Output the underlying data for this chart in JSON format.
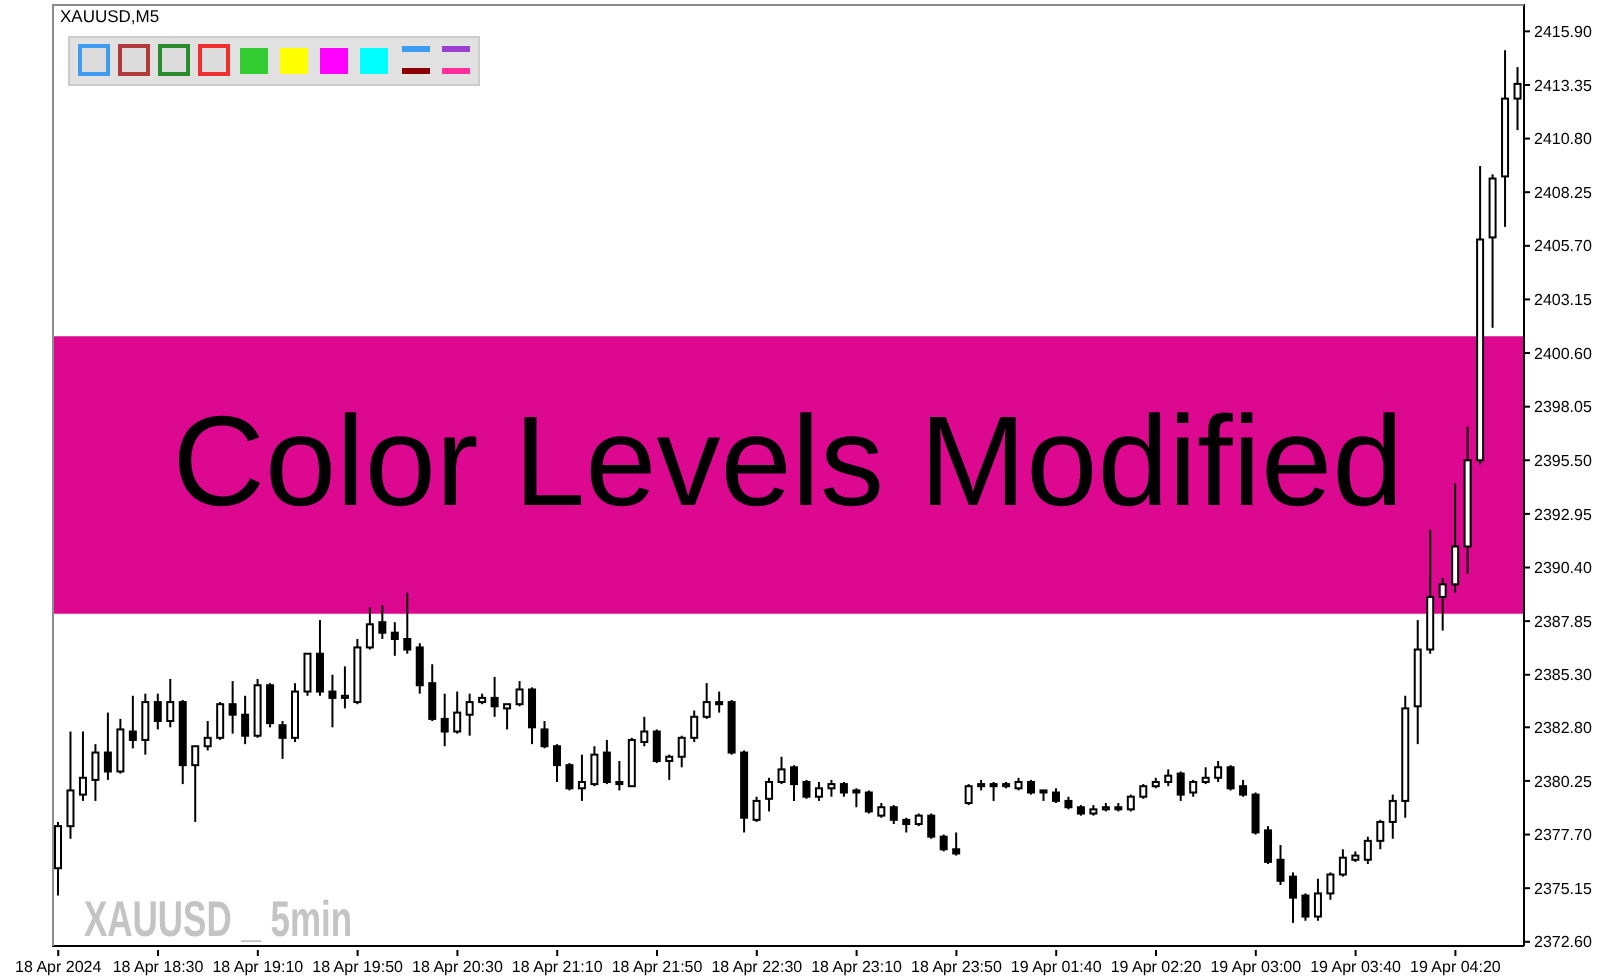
{
  "chart_data": {
    "type": "candlestick",
    "title": "XAUUSD,M5",
    "annotations": [
      "XAUUSD _ 5min"
    ],
    "categories": [
      "18 Apr 2024",
      null,
      null,
      null,
      null,
      null,
      null,
      null,
      "18 Apr 18:30",
      null,
      null,
      null,
      null,
      null,
      null,
      null,
      "18 Apr 19:10",
      null,
      null,
      null,
      null,
      null,
      null,
      null,
      "18 Apr 19:50",
      null,
      null,
      null,
      null,
      null,
      null,
      null,
      "18 Apr 20:30",
      null,
      null,
      null,
      null,
      null,
      null,
      null,
      "18 Apr 21:10",
      null,
      null,
      null,
      null,
      null,
      null,
      null,
      "18 Apr 21:50",
      null,
      null,
      null,
      null,
      null,
      null,
      null,
      "18 Apr 22:30",
      null,
      null,
      null,
      null,
      null,
      null,
      null,
      "18 Apr 23:10",
      null,
      null,
      null,
      null,
      null,
      null,
      null,
      "18 Apr 23:50",
      null,
      null,
      null,
      null,
      null,
      null,
      null,
      "19 Apr 01:40",
      null,
      null,
      null,
      null,
      null,
      null,
      null,
      "19 Apr 02:20",
      null,
      null,
      null,
      null,
      null,
      null,
      null,
      "19 Apr 03:00",
      null,
      null,
      null,
      null,
      null,
      null,
      null,
      "19 Apr 03:40",
      null,
      null,
      null,
      null,
      null,
      null,
      null,
      "19 Apr 04:20",
      null,
      null,
      null,
      null,
      null
    ],
    "ohlc": [
      [
        2376.1,
        2378.3,
        2374.8,
        2378.1
      ],
      [
        2378.1,
        2382.6,
        2377.5,
        2379.8
      ],
      [
        2379.6,
        2382.6,
        2379.3,
        2380.4
      ],
      [
        2380.3,
        2382.0,
        2379.3,
        2381.6
      ],
      [
        2381.6,
        2383.5,
        2380.3,
        2380.7
      ],
      [
        2380.7,
        2383.2,
        2380.6,
        2382.7
      ],
      [
        2382.6,
        2384.3,
        2381.8,
        2382.2
      ],
      [
        2382.2,
        2384.4,
        2381.5,
        2384.0
      ],
      [
        2384.0,
        2384.4,
        2382.7,
        2383.1
      ],
      [
        2383.1,
        2385.1,
        2382.8,
        2384.0
      ],
      [
        2384.0,
        2384.1,
        2380.1,
        2381.0
      ],
      [
        2381.0,
        2381.9,
        2378.3,
        2381.9
      ],
      [
        2381.9,
        2383.1,
        2381.7,
        2382.3
      ],
      [
        2382.3,
        2384.0,
        2382.2,
        2383.9
      ],
      [
        2383.9,
        2385.0,
        2382.5,
        2383.4
      ],
      [
        2383.4,
        2384.3,
        2382.0,
        2382.4
      ],
      [
        2382.4,
        2385.1,
        2382.3,
        2384.8
      ],
      [
        2384.8,
        2384.9,
        2382.8,
        2383.0
      ],
      [
        2382.9,
        2383.1,
        2381.3,
        2382.3
      ],
      [
        2382.3,
        2384.9,
        2382.1,
        2384.5
      ],
      [
        2384.5,
        2386.3,
        2384.3,
        2386.3
      ],
      [
        2386.3,
        2387.9,
        2384.3,
        2384.5
      ],
      [
        2384.5,
        2385.3,
        2382.8,
        2384.2
      ],
      [
        2384.2,
        2385.7,
        2383.7,
        2384.3
      ],
      [
        2384.0,
        2387.0,
        2383.9,
        2386.6
      ],
      [
        2386.6,
        2388.5,
        2386.5,
        2387.7
      ],
      [
        2387.8,
        2388.6,
        2387.0,
        2387.3
      ],
      [
        2387.3,
        2387.8,
        2386.2,
        2387.0
      ],
      [
        2387.0,
        2389.2,
        2386.3,
        2386.5
      ],
      [
        2386.6,
        2386.8,
        2384.4,
        2384.8
      ],
      [
        2384.9,
        2385.8,
        2383.1,
        2383.2
      ],
      [
        2383.2,
        2384.4,
        2381.9,
        2382.6
      ],
      [
        2382.6,
        2384.5,
        2382.5,
        2383.5
      ],
      [
        2383.4,
        2384.4,
        2382.4,
        2384.0
      ],
      [
        2384.0,
        2384.4,
        2383.9,
        2384.2
      ],
      [
        2384.2,
        2385.2,
        2383.3,
        2383.8
      ],
      [
        2383.7,
        2383.9,
        2382.7,
        2383.9
      ],
      [
        2383.9,
        2385.0,
        2383.8,
        2384.6
      ],
      [
        2384.6,
        2384.7,
        2382.0,
        2382.8
      ],
      [
        2382.7,
        2383.1,
        2381.8,
        2381.9
      ],
      [
        2381.9,
        2382.0,
        2380.2,
        2381.0
      ],
      [
        2381.0,
        2381.1,
        2379.8,
        2379.9
      ],
      [
        2379.9,
        2381.5,
        2379.3,
        2380.2
      ],
      [
        2380.1,
        2381.9,
        2380.0,
        2381.5
      ],
      [
        2381.6,
        2382.2,
        2380.1,
        2380.2
      ],
      [
        2380.2,
        2381.2,
        2379.8,
        2380.1
      ],
      [
        2380.0,
        2382.3,
        2380.0,
        2382.2
      ],
      [
        2382.1,
        2383.3,
        2381.9,
        2382.6
      ],
      [
        2382.6,
        2382.7,
        2381.1,
        2381.2
      ],
      [
        2381.2,
        2381.5,
        2380.3,
        2381.4
      ],
      [
        2381.4,
        2382.4,
        2380.9,
        2382.3
      ],
      [
        2382.3,
        2383.6,
        2382.1,
        2383.3
      ],
      [
        2383.3,
        2384.9,
        2383.2,
        2384.0
      ],
      [
        2384.0,
        2384.5,
        2383.5,
        2383.9
      ],
      [
        2384.0,
        2384.1,
        2381.5,
        2381.6
      ],
      [
        2381.6,
        2381.7,
        2377.8,
        2378.5
      ],
      [
        2378.4,
        2379.5,
        2378.3,
        2379.3
      ],
      [
        2379.4,
        2380.4,
        2378.8,
        2380.2
      ],
      [
        2380.2,
        2381.4,
        2380.1,
        2380.8
      ],
      [
        2380.9,
        2381.0,
        2379.3,
        2380.1
      ],
      [
        2380.2,
        2380.3,
        2379.4,
        2379.5
      ],
      [
        2379.5,
        2380.2,
        2379.3,
        2379.9
      ],
      [
        2379.9,
        2380.3,
        2379.5,
        2380.1
      ],
      [
        2380.1,
        2380.2,
        2379.5,
        2379.7
      ],
      [
        2379.8,
        2379.9,
        2379.0,
        2379.7
      ],
      [
        2379.7,
        2379.8,
        2378.7,
        2378.8
      ],
      [
        2378.6,
        2379.2,
        2378.5,
        2379.0
      ],
      [
        2379.0,
        2379.1,
        2378.2,
        2378.4
      ],
      [
        2378.4,
        2378.5,
        2377.8,
        2378.2
      ],
      [
        2378.2,
        2378.7,
        2378.1,
        2378.6
      ],
      [
        2378.6,
        2378.7,
        2377.5,
        2377.6
      ],
      [
        2377.6,
        2377.7,
        2376.9,
        2377.0
      ],
      [
        2377.0,
        2377.8,
        2376.7,
        2376.8
      ],
      [
        2379.2,
        2380.1,
        2379.1,
        2380.0
      ],
      [
        2380.0,
        2380.3,
        2379.8,
        2380.1
      ],
      [
        2380.1,
        2380.2,
        2379.3,
        2380.0
      ],
      [
        2380.0,
        2380.2,
        2379.9,
        2380.1
      ],
      [
        2379.9,
        2380.4,
        2379.8,
        2380.2
      ],
      [
        2380.2,
        2380.3,
        2379.6,
        2379.7
      ],
      [
        2379.8,
        2379.8,
        2379.3,
        2379.7
      ],
      [
        2379.7,
        2379.9,
        2379.2,
        2379.3
      ],
      [
        2379.3,
        2379.5,
        2378.9,
        2379.0
      ],
      [
        2379.0,
        2379.1,
        2378.6,
        2378.7
      ],
      [
        2378.7,
        2379.1,
        2378.6,
        2378.9
      ],
      [
        2378.9,
        2379.2,
        2378.8,
        2379.0
      ],
      [
        2379.0,
        2379.2,
        2378.8,
        2378.9
      ],
      [
        2378.9,
        2379.6,
        2378.8,
        2379.5
      ],
      [
        2379.5,
        2380.1,
        2379.4,
        2380.0
      ],
      [
        2380.0,
        2380.4,
        2379.9,
        2380.2
      ],
      [
        2380.2,
        2380.8,
        2380.0,
        2380.5
      ],
      [
        2380.6,
        2380.7,
        2379.3,
        2379.6
      ],
      [
        2379.7,
        2380.3,
        2379.5,
        2380.2
      ],
      [
        2380.2,
        2380.9,
        2380.1,
        2380.4
      ],
      [
        2380.4,
        2381.2,
        2380.2,
        2380.9
      ],
      [
        2380.9,
        2381.0,
        2379.8,
        2379.9
      ],
      [
        2380.0,
        2380.3,
        2379.5,
        2379.6
      ],
      [
        2379.6,
        2379.7,
        2377.7,
        2377.8
      ],
      [
        2377.9,
        2378.1,
        2376.3,
        2376.4
      ],
      [
        2376.5,
        2377.2,
        2375.3,
        2375.5
      ],
      [
        2375.7,
        2375.9,
        2373.5,
        2374.7
      ],
      [
        2374.8,
        2374.9,
        2373.6,
        2373.8
      ],
      [
        2373.8,
        2375.6,
        2373.6,
        2374.9
      ],
      [
        2374.9,
        2375.9,
        2374.6,
        2375.8
      ],
      [
        2375.8,
        2377.0,
        2375.7,
        2376.6
      ],
      [
        2376.5,
        2376.9,
        2376.4,
        2376.7
      ],
      [
        2376.5,
        2377.6,
        2376.3,
        2377.4
      ],
      [
        2377.4,
        2378.4,
        2377.0,
        2378.3
      ],
      [
        2378.3,
        2379.6,
        2377.5,
        2379.3
      ],
      [
        2379.3,
        2384.3,
        2378.5,
        2383.7
      ],
      [
        2383.8,
        2387.9,
        2382.0,
        2386.5
      ],
      [
        2386.5,
        2392.2,
        2386.3,
        2389.0
      ],
      [
        2389.0,
        2389.9,
        2387.4,
        2389.6
      ],
      [
        2389.6,
        2394.4,
        2389.2,
        2391.4
      ],
      [
        2391.4,
        2397.1,
        2390.1,
        2395.5
      ],
      [
        2395.5,
        2409.5,
        2395.3,
        2406.0
      ],
      [
        2406.1,
        2409.1,
        2401.8,
        2408.9
      ],
      [
        2409.0,
        2415.0,
        2406.6,
        2412.7
      ],
      [
        2412.7,
        2414.2,
        2411.2,
        2413.4
      ]
    ],
    "color": "#000000",
    "colors": [
      "#ffffff",
      "#ffffff",
      "#ffffff",
      "#ffffff",
      "#000000",
      "#ffffff",
      "#000000",
      "#ffffff",
      "#000000",
      "#ffffff",
      "#000000",
      "#ffffff",
      "#ffffff",
      "#ffffff",
      "#000000",
      "#000000",
      "#ffffff",
      "#000000",
      "#000000",
      "#ffffff",
      "#ffffff",
      "#000000",
      "#000000",
      "#ffffff",
      "#ffffff",
      "#ffffff",
      "#000000",
      "#000000",
      "#000000",
      "#000000",
      "#000000",
      "#000000",
      "#ffffff",
      "#ffffff",
      "#ffffff",
      "#000000",
      "#ffffff",
      "#ffffff",
      "#000000",
      "#000000",
      "#000000",
      "#000000",
      "#ffffff",
      "#ffffff",
      "#000000",
      "#000000",
      "#ffffff",
      "#ffffff",
      "#000000",
      "#ffffff",
      "#ffffff",
      "#ffffff",
      "#ffffff",
      "#000000",
      "#000000",
      "#000000",
      "#ffffff",
      "#ffffff",
      "#ffffff",
      "#000000",
      "#000000",
      "#ffffff",
      "#ffffff",
      "#000000",
      "#000000",
      "#000000",
      "#ffffff",
      "#000000",
      "#000000",
      "#ffffff",
      "#000000",
      "#000000",
      "#000000",
      "#ffffff",
      "#ffffff",
      "#000000",
      "#ffffff",
      "#ffffff",
      "#000000",
      "#000000",
      "#000000",
      "#000000",
      "#000000",
      "#ffffff",
      "#ffffff",
      "#000000",
      "#ffffff",
      "#ffffff",
      "#ffffff",
      "#ffffff",
      "#000000",
      "#ffffff",
      "#ffffff",
      "#ffffff",
      "#000000",
      "#000000",
      "#000000",
      "#000000",
      "#000000",
      "#000000",
      "#000000",
      "#ffffff",
      "#ffffff",
      "#ffffff",
      "#ffffff",
      "#ffffff",
      "#ffffff",
      "#ffffff",
      "#ffffff",
      "#ffffff",
      "#ffffff",
      "#ffffff",
      "#ffffff",
      "#ffffff",
      "#ffffff",
      "#ffffff",
      "#ffffff",
      "#ffffff"
    ],
    "ylim": [
      2372.4,
      2417.2
    ],
    "yticks": [
      {
        "value": 2372.6,
        "label": "2372.60"
      },
      {
        "value": 2375.15,
        "label": "2375.15"
      },
      {
        "value": 2377.7,
        "label": "2377.70"
      },
      {
        "value": 2380.25,
        "label": "2380.25"
      },
      {
        "value": 2382.8,
        "label": "2382.80"
      },
      {
        "value": 2385.3,
        "label": "2385.30"
      },
      {
        "value": 2387.85,
        "label": "2387.85"
      },
      {
        "value": 2390.4,
        "label": "2390.40"
      },
      {
        "value": 2392.95,
        "label": "2392.95"
      },
      {
        "value": 2395.5,
        "label": "2395.50"
      },
      {
        "value": 2398.05,
        "label": "2398.05"
      },
      {
        "value": 2400.6,
        "label": "2400.60"
      },
      {
        "value": 2403.15,
        "label": "2403.15"
      },
      {
        "value": 2405.7,
        "label": "2405.70"
      },
      {
        "value": 2408.25,
        "label": "2408.25"
      },
      {
        "value": 2410.8,
        "label": "2410.80"
      },
      {
        "value": 2413.35,
        "label": "2413.35"
      },
      {
        "value": 2415.9,
        "label": "2415.90"
      }
    ],
    "bands": [
      {
        "axis": "y",
        "from": 2388.2,
        "to": 2401.4,
        "label": "Color Levels Modified",
        "color": "#dc0890"
      }
    ]
  }
}
